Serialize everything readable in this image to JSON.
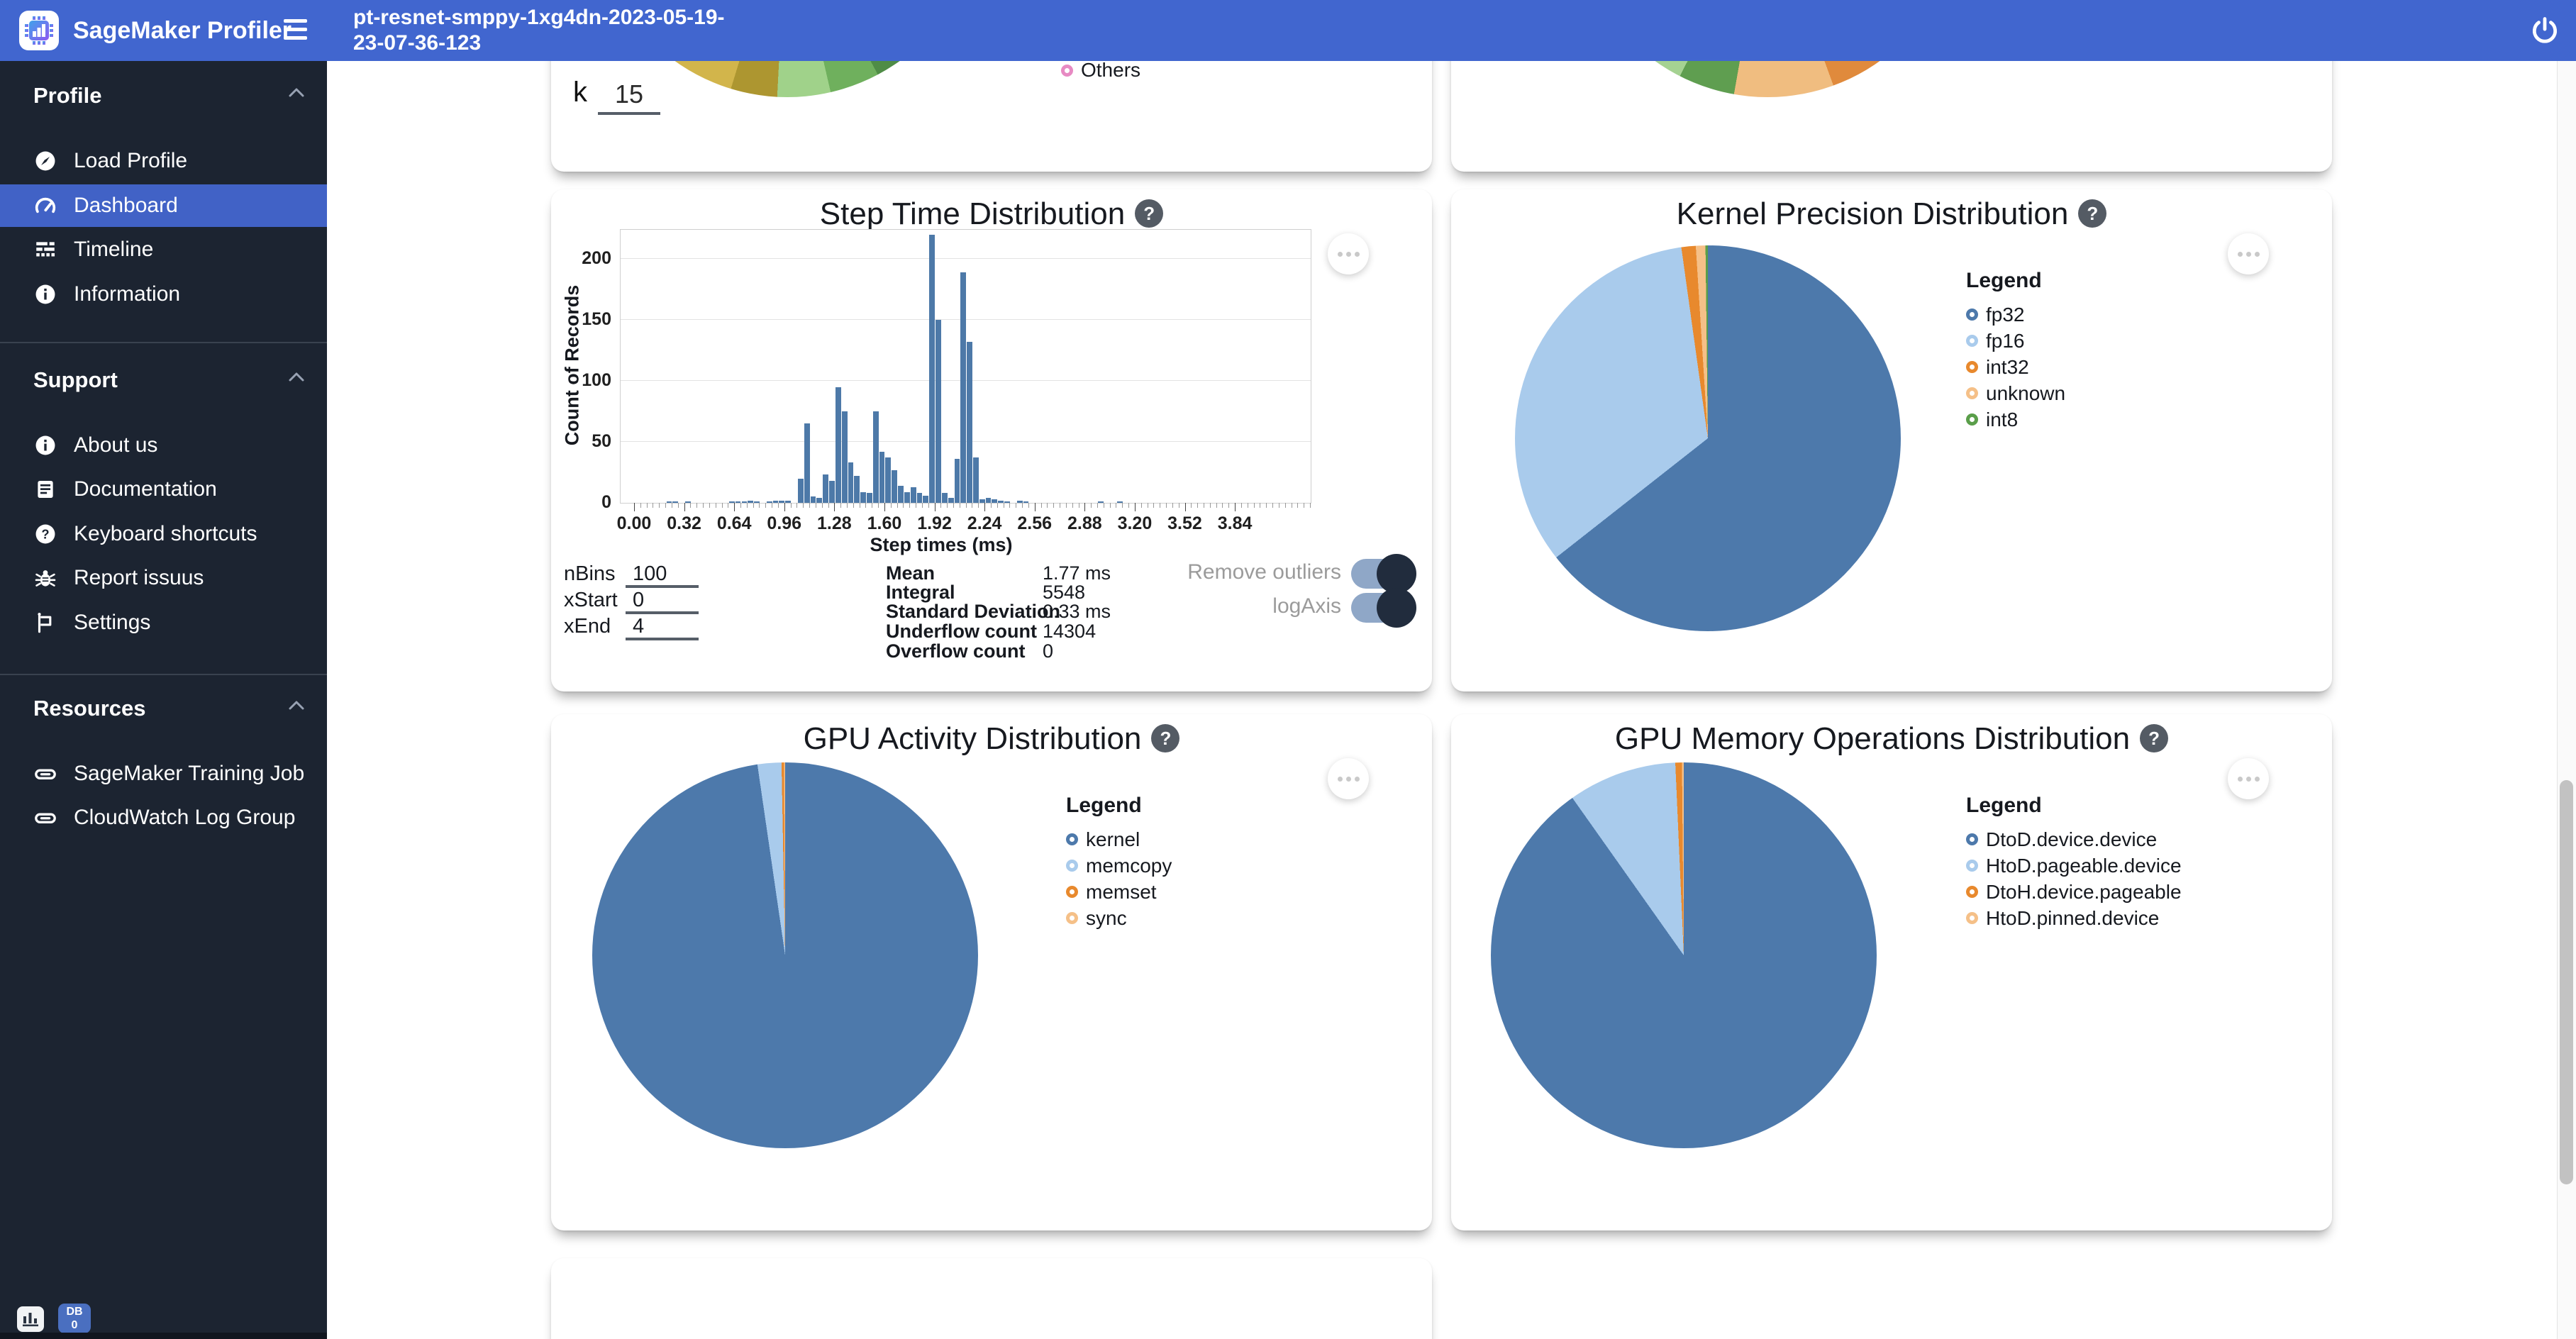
{
  "header": {
    "app_title": "SageMaker Profiler",
    "run_name_lines": [
      "pt-resnet-smppy-1xg4dn-2023-05-19-",
      "23-07-36-123"
    ],
    "icons": [
      "chip-logo-icon",
      "hamburger-icon",
      "power-icon"
    ]
  },
  "sidebar": {
    "sections": [
      {
        "label": "Profile",
        "items": [
          {
            "label": "Load Profile",
            "icon": "compass-icon",
            "active": false
          },
          {
            "label": "Dashboard",
            "icon": "speedometer-icon",
            "active": true
          },
          {
            "label": "Timeline",
            "icon": "timeline-icon",
            "active": false
          },
          {
            "label": "Information",
            "icon": "info-icon",
            "active": false
          }
        ]
      },
      {
        "label": "Support",
        "items": [
          {
            "label": "About us",
            "icon": "info-icon",
            "active": false
          },
          {
            "label": "Documentation",
            "icon": "document-icon",
            "active": false
          },
          {
            "label": "Keyboard shortcuts",
            "icon": "question-icon",
            "active": false
          },
          {
            "label": "Report issuus",
            "icon": "bug-icon",
            "active": false
          },
          {
            "label": "Settings",
            "icon": "flag-icon",
            "active": false
          }
        ]
      },
      {
        "label": "Resources",
        "items": [
          {
            "label": "SageMaker Training Job",
            "icon": "link-icon",
            "active": false
          },
          {
            "label": "CloudWatch Log Group",
            "icon": "link-icon",
            "active": false
          }
        ]
      }
    ],
    "badges": {
      "db_line1": "DB",
      "db_line2": "0"
    }
  },
  "cards": {
    "top_left": {
      "k_label": "k",
      "k_value": "15"
    }
  },
  "chart_data": [
    {
      "id": "step_time_histogram",
      "type": "bar",
      "title": "Step Time Distribution",
      "xlabel": "Step times (ms)",
      "ylabel": "Count of Records",
      "bar_color": "#4d79a8",
      "x_tick_labels": [
        "0.00",
        "0.32",
        "0.64",
        "0.96",
        "1.28",
        "1.60",
        "1.92",
        "2.24",
        "2.56",
        "2.88",
        "3.20",
        "3.52",
        "3.84"
      ],
      "y_ticks": [
        0,
        50,
        100,
        150,
        200
      ],
      "ylim": [
        0,
        224
      ],
      "xlim": [
        0,
        4.33
      ],
      "grid": true,
      "bin_width": 0.04,
      "bins": [
        [
          0.2,
          1
        ],
        [
          0.24,
          1
        ],
        [
          0.32,
          1
        ],
        [
          0.6,
          1
        ],
        [
          0.64,
          1
        ],
        [
          0.68,
          1
        ],
        [
          0.72,
          2
        ],
        [
          0.76,
          1
        ],
        [
          0.84,
          1
        ],
        [
          0.88,
          2
        ],
        [
          0.92,
          2
        ],
        [
          0.96,
          2
        ],
        [
          1.04,
          20
        ],
        [
          1.08,
          65
        ],
        [
          1.12,
          5
        ],
        [
          1.16,
          4
        ],
        [
          1.2,
          23
        ],
        [
          1.24,
          18
        ],
        [
          1.28,
          95
        ],
        [
          1.32,
          75
        ],
        [
          1.36,
          33
        ],
        [
          1.4,
          22
        ],
        [
          1.44,
          9
        ],
        [
          1.48,
          8
        ],
        [
          1.52,
          75
        ],
        [
          1.56,
          42
        ],
        [
          1.6,
          37
        ],
        [
          1.64,
          27
        ],
        [
          1.68,
          14
        ],
        [
          1.72,
          9
        ],
        [
          1.76,
          13
        ],
        [
          1.8,
          8
        ],
        [
          1.84,
          6
        ],
        [
          1.88,
          220
        ],
        [
          1.92,
          150
        ],
        [
          1.96,
          8
        ],
        [
          2.0,
          4
        ],
        [
          2.04,
          36
        ],
        [
          2.08,
          189
        ],
        [
          2.12,
          132
        ],
        [
          2.16,
          37
        ],
        [
          2.2,
          3
        ],
        [
          2.24,
          4
        ],
        [
          2.28,
          3
        ],
        [
          2.32,
          2
        ],
        [
          2.36,
          1
        ],
        [
          2.44,
          2
        ],
        [
          2.48,
          1
        ],
        [
          2.96,
          1
        ],
        [
          3.08,
          1
        ]
      ],
      "controls": [
        {
          "label": "nBins",
          "value": "100"
        },
        {
          "label": "xStart",
          "value": "0"
        },
        {
          "label": "xEnd",
          "value": "4"
        }
      ],
      "stats": [
        {
          "label": "Mean",
          "value": "1.77 ms"
        },
        {
          "label": "Integral",
          "value": "5548"
        },
        {
          "label": "Standard Deviation",
          "value": "0.33 ms"
        },
        {
          "label": "Underflow count",
          "value": "14304"
        },
        {
          "label": "Overflow count",
          "value": "0"
        }
      ],
      "toggles": [
        {
          "label": "Remove outliers",
          "on": true
        },
        {
          "label": "logAxis",
          "on": true
        }
      ]
    },
    {
      "id": "kernel_precision_pie",
      "type": "pie",
      "title": "Kernel Precision Distribution",
      "legend_title": "Legend",
      "legend_position": "right",
      "slices": [
        {
          "label": "fp32",
          "percent": 64.4,
          "color": "#4d79ab"
        },
        {
          "label": "fp16",
          "percent": 33.4,
          "color": "#a9cbec"
        },
        {
          "label": "int32",
          "percent": 1.2,
          "color": "#e8892d"
        },
        {
          "label": "unknown",
          "percent": 0.8,
          "color": "#f5c088"
        },
        {
          "label": "int8",
          "percent": 0.2,
          "color": "#5a9e4a"
        }
      ]
    },
    {
      "id": "gpu_activity_pie",
      "type": "pie",
      "title": "GPU Activity Distribution",
      "legend_title": "Legend",
      "legend_position": "right",
      "slices": [
        {
          "label": "kernel",
          "percent": 97.7,
          "color": "#4d79ab"
        },
        {
          "label": "memcopy",
          "percent": 2.0,
          "color": "#a9cbec"
        },
        {
          "label": "memset",
          "percent": 0.2,
          "color": "#e8892d"
        },
        {
          "label": "sync",
          "percent": 0.1,
          "color": "#f5c088"
        }
      ]
    },
    {
      "id": "gpu_memory_operations_pie",
      "type": "pie",
      "title": "GPU Memory Operations Distribution",
      "legend_title": "Legend",
      "legend_position": "right",
      "slices": [
        {
          "label": "DtoD.device.device",
          "percent": 90.2,
          "color": "#4d79ab"
        },
        {
          "label": "HtoD.pageable.device",
          "percent": 9.1,
          "color": "#a9cbec"
        },
        {
          "label": "DtoH.device.pageable",
          "percent": 0.55,
          "color": "#e8892d"
        },
        {
          "label": "HtoD.pinned.device",
          "percent": 0.15,
          "color": "#f5c088"
        }
      ]
    },
    {
      "id": "top_left_partial_pie",
      "type": "pie",
      "note": "pie cut off by fixed header; only bottom arc visible",
      "legend": [
        {
          "label": "Others",
          "color": "#e78ac3"
        }
      ],
      "visible_segment_colors": [
        "#d2b54b",
        "#ad9630",
        "#a0d28a",
        "#6fb05d",
        "#4f8c46"
      ],
      "conic_stops": "#6fb05d 0 143deg, #4f8c46 143deg 152deg, #6fb05d 152deg 167deg, #a0d28a 167deg 183deg, #ad9630 183deg 197deg, #d2b54b 197deg 217deg, #e2a743 217deg 360deg"
    },
    {
      "id": "top_right_partial_pie",
      "type": "pie",
      "note": "pie cut off by fixed header; only bottom arc visible",
      "visible_segment_colors": [
        "#a5d292",
        "#5f9e50",
        "#f0bd80",
        "#e08a3c"
      ],
      "conic_stops": "#5f9e50 0 140deg, #e08a3c 140deg 160deg, #f0bd80 160deg 190deg, #5f9e50 190deg 207deg, #a5d292 207deg 228deg, #a5d292 228deg 360deg"
    }
  ]
}
